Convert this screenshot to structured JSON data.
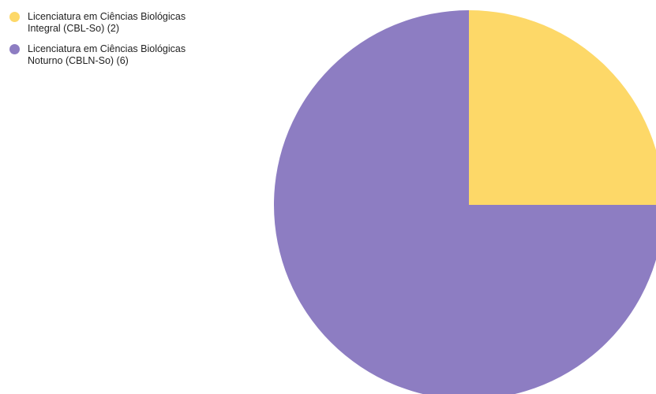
{
  "chart_data": {
    "type": "pie",
    "title": "",
    "legend_position": "top-left",
    "slices": [
      {
        "label": "Licenciatura em Ciências Biológicas\nIntegral (CBL-So) (2)",
        "value": 2,
        "color": "#fdd868"
      },
      {
        "label": "Licenciatura em Ciências Biológicas\nNoturno (CBLN-So) (6)",
        "value": 6,
        "color": "#8d7dc2"
      }
    ]
  }
}
